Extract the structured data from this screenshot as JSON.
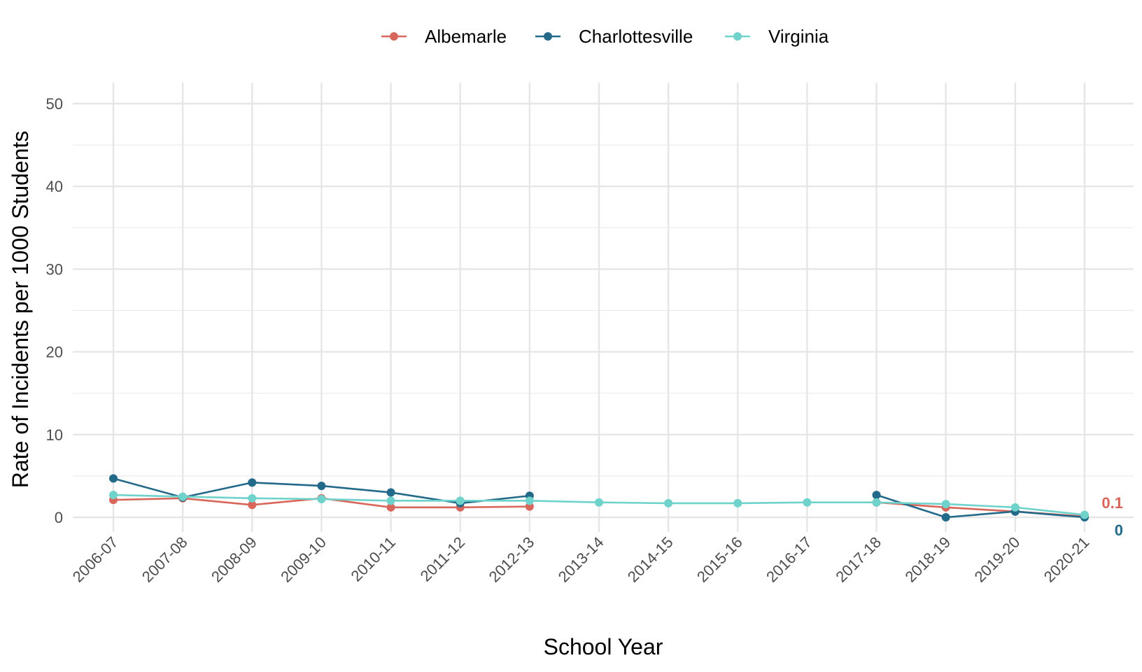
{
  "chart_data": {
    "type": "line",
    "title": "",
    "xlabel": "School Year",
    "ylabel": "Rate of Incidents per 1000 Students",
    "ylim": [
      0,
      50
    ],
    "yticks": [
      0,
      10,
      20,
      30,
      40,
      50
    ],
    "grid": true,
    "legend_position": "top",
    "categories": [
      "2006-07",
      "2007-08",
      "2008-09",
      "2009-10",
      "2010-11",
      "2011-12",
      "2012-13",
      "2013-14",
      "2014-15",
      "2015-16",
      "2016-17",
      "2017-18",
      "2018-19",
      "2019-20",
      "2020-21"
    ],
    "series": [
      {
        "name": "Albemarle",
        "color": "#D9665B",
        "values": [
          2.1,
          2.3,
          1.5,
          2.3,
          1.2,
          1.2,
          1.3,
          null,
          null,
          null,
          null,
          1.8,
          1.2,
          0.7,
          0.1
        ],
        "end_label": "0.1"
      },
      {
        "name": "Charlottesville",
        "color": "#23698A",
        "values": [
          4.7,
          2.4,
          4.2,
          3.8,
          3.0,
          1.7,
          2.6,
          null,
          null,
          null,
          null,
          2.7,
          0.0,
          0.7,
          0.0
        ],
        "end_label": "0"
      },
      {
        "name": "Virginia",
        "color": "#6FD3CB",
        "values": [
          2.7,
          2.5,
          2.3,
          2.2,
          2.0,
          2.0,
          2.0,
          1.8,
          1.7,
          1.7,
          1.8,
          1.8,
          1.6,
          1.2,
          0.3
        ],
        "end_label": ""
      }
    ]
  }
}
